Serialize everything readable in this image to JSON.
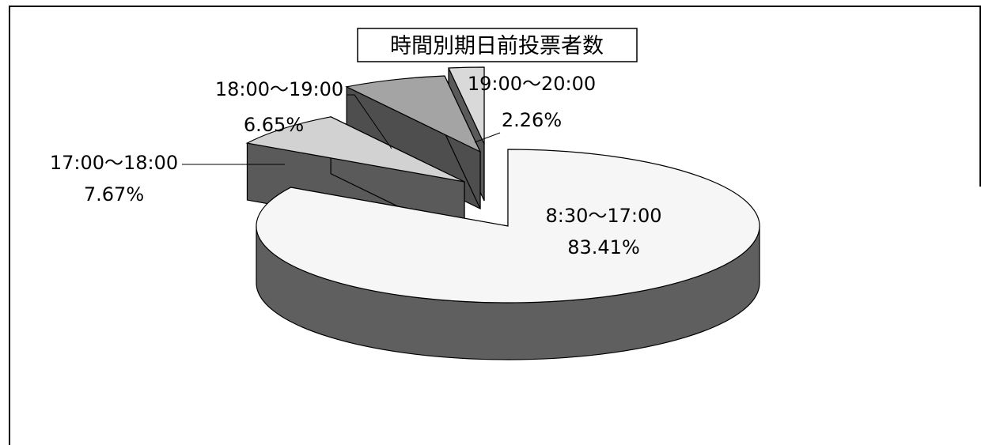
{
  "chart_data": {
    "type": "pie",
    "style": "3d-exploded",
    "title": "時間別期日前投票者数",
    "slices": [
      {
        "label": "8:30～17:00",
        "value_label": "83.41%",
        "value": 83.41,
        "color": "#f6f6f6",
        "side_color": "#5f5f5f"
      },
      {
        "label": "17:00～18:00",
        "value_label": "7.67%",
        "value": 7.67,
        "color": "#d2d2d2",
        "side_color": "#5a5a5a"
      },
      {
        "label": "18:00～19:00",
        "value_label": "6.65%",
        "value": 6.65,
        "color": "#a4a4a4",
        "side_color": "#4e4e4e"
      },
      {
        "label": "19:00～20:00",
        "value_label": "2.26%",
        "value": 2.26,
        "color": "#d9d9d9",
        "side_color": "#5a5a5a"
      }
    ],
    "legend": "none"
  }
}
